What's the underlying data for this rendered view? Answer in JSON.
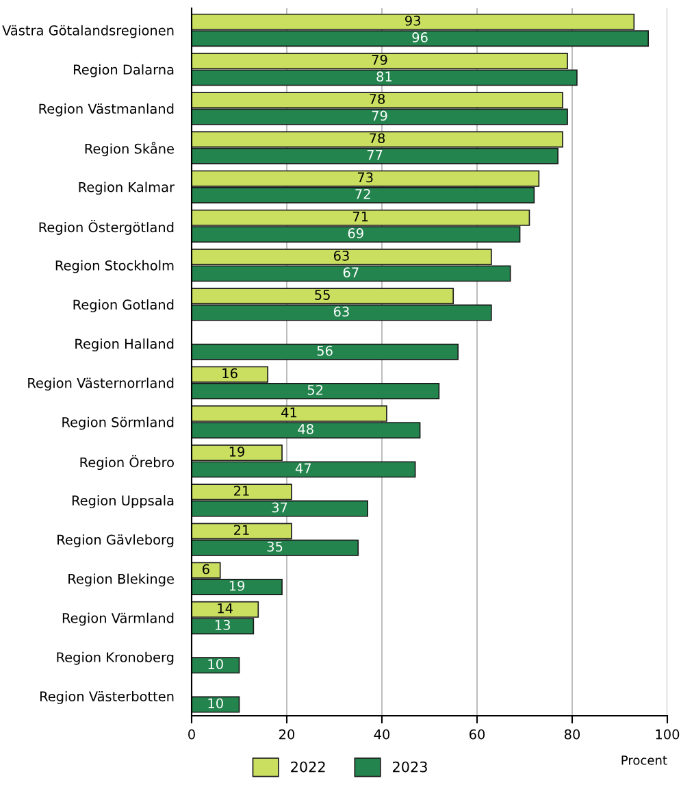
{
  "chart_data": {
    "type": "bar",
    "orientation": "horizontal",
    "categories": [
      "Västra Götalandsregionen",
      "Region Dalarna",
      "Region Västmanland",
      "Region Skåne",
      "Region Kalmar",
      "Region Östergötland",
      "Region Stockholm",
      "Region Gotland",
      "Region Halland",
      "Region Västernorrland",
      "Region Sörmland",
      "Region Örebro",
      "Region Uppsala",
      "Region Gävleborg",
      "Region Blekinge",
      "Region Värmland",
      "Region Kronoberg",
      "Region Västerbotten"
    ],
    "series": [
      {
        "name": "2022",
        "color": "#cade60",
        "values": [
          93,
          79,
          78,
          78,
          73,
          71,
          63,
          55,
          null,
          16,
          41,
          19,
          21,
          21,
          6,
          14,
          null,
          null
        ]
      },
      {
        "name": "2023",
        "color": "#23844e",
        "values": [
          96,
          81,
          79,
          77,
          72,
          69,
          67,
          63,
          56,
          52,
          48,
          47,
          37,
          35,
          19,
          13,
          10,
          10
        ]
      }
    ],
    "xlim": [
      0,
      100
    ],
    "xticks": [
      0,
      20,
      40,
      60,
      80,
      100
    ],
    "xlabel": "Procent",
    "grid": "x",
    "legend": "bottom",
    "data_labels": true
  }
}
